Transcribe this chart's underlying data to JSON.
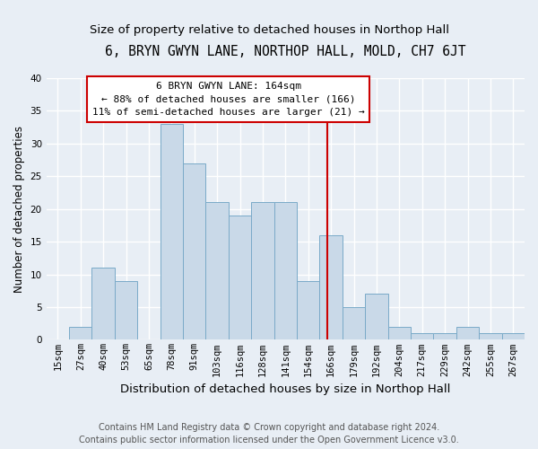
{
  "title": "6, BRYN GWYN LANE, NORTHOP HALL, MOLD, CH7 6JT",
  "subtitle": "Size of property relative to detached houses in Northop Hall",
  "xlabel": "Distribution of detached houses by size in Northop Hall",
  "ylabel": "Number of detached properties",
  "categories": [
    "15sqm",
    "27sqm",
    "40sqm",
    "53sqm",
    "65sqm",
    "78sqm",
    "91sqm",
    "103sqm",
    "116sqm",
    "128sqm",
    "141sqm",
    "154sqm",
    "166sqm",
    "179sqm",
    "192sqm",
    "204sqm",
    "217sqm",
    "229sqm",
    "242sqm",
    "255sqm",
    "267sqm"
  ],
  "values": [
    0,
    2,
    11,
    9,
    0,
    33,
    27,
    21,
    19,
    21,
    21,
    9,
    16,
    5,
    7,
    2,
    1,
    1,
    2,
    1,
    1
  ],
  "bar_color": "#c9d9e8",
  "bar_edge_color": "#7aaac8",
  "background_color": "#e8eef5",
  "grid_color": "#ffffff",
  "annotation_text_line1": "6 BRYN GWYN LANE: 164sqm",
  "annotation_text_line2": "← 88% of detached houses are smaller (166)",
  "annotation_text_line3": "11% of semi-detached houses are larger (21) →",
  "annotation_box_color": "#cc0000",
  "footer_line1": "Contains HM Land Registry data © Crown copyright and database right 2024.",
  "footer_line2": "Contains public sector information licensed under the Open Government Licence v3.0.",
  "ylim": [
    0,
    40
  ],
  "title_fontsize": 10.5,
  "subtitle_fontsize": 9.5,
  "xlabel_fontsize": 9.5,
  "ylabel_fontsize": 8.5,
  "tick_fontsize": 7.5,
  "annot_fontsize": 8.0,
  "footer_fontsize": 7.0
}
